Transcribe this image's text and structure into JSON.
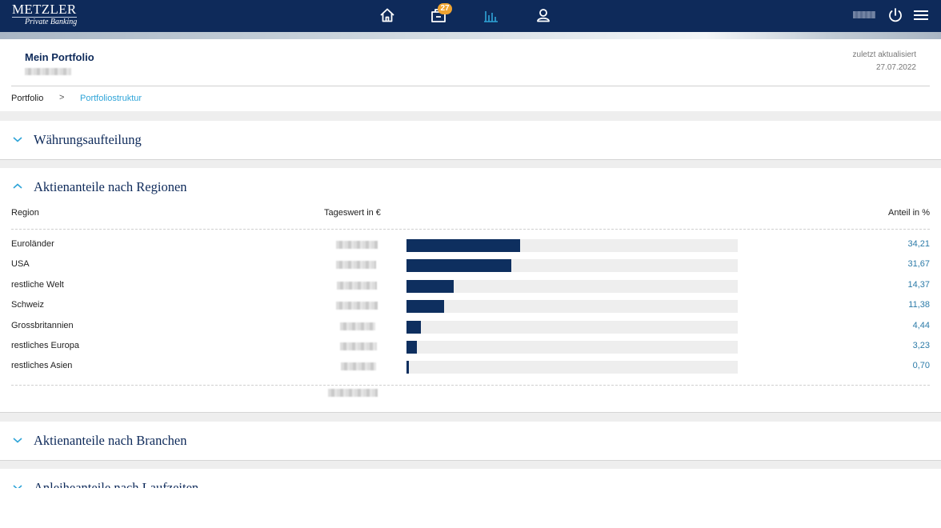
{
  "brand": {
    "name": "METZLER",
    "sub": "Private Banking"
  },
  "nav": {
    "icons": [
      "home-icon",
      "inbox-icon",
      "chart-icon",
      "user-icon"
    ],
    "inbox_badge": "27",
    "active_color": "#2fa4d8"
  },
  "header": {
    "title": "Mein Portfolio",
    "updated_label": "zuletzt aktualisiert",
    "updated_date": "27.07.2022"
  },
  "breadcrumb": {
    "root": "Portfolio",
    "separator": ">",
    "current": "Portfoliostruktur"
  },
  "sections": {
    "waehrung": "Währungsaufteilung",
    "regionen": "Aktienanteile nach Regionen",
    "branchen": "Aktienanteile nach Branchen",
    "laufzeiten": "Anleiheanteile nach Laufzeiten"
  },
  "table": {
    "col_region": "Region",
    "col_value": "Tageswert in €",
    "col_share": "Anteil in %",
    "rows": [
      {
        "region": "Euroländer",
        "share": "34,21",
        "share_value": 34.21
      },
      {
        "region": "USA",
        "share": "31,67",
        "share_value": 31.67
      },
      {
        "region": "restliche Welt",
        "share": "14,37",
        "share_value": 14.37
      },
      {
        "region": "Schweiz",
        "share": "11,38",
        "share_value": 11.38
      },
      {
        "region": "Grossbritannien",
        "share": "4,44",
        "share_value": 4.44
      },
      {
        "region": "restliches Europa",
        "share": "3,23",
        "share_value": 3.23
      },
      {
        "region": "restliches Asien",
        "share": "0,70",
        "share_value": 0.7
      }
    ]
  },
  "colors": {
    "navy": "#0e2a5a",
    "link": "#2c7ba8",
    "bar": "#0e2f5f",
    "badge": "#f0a431"
  }
}
